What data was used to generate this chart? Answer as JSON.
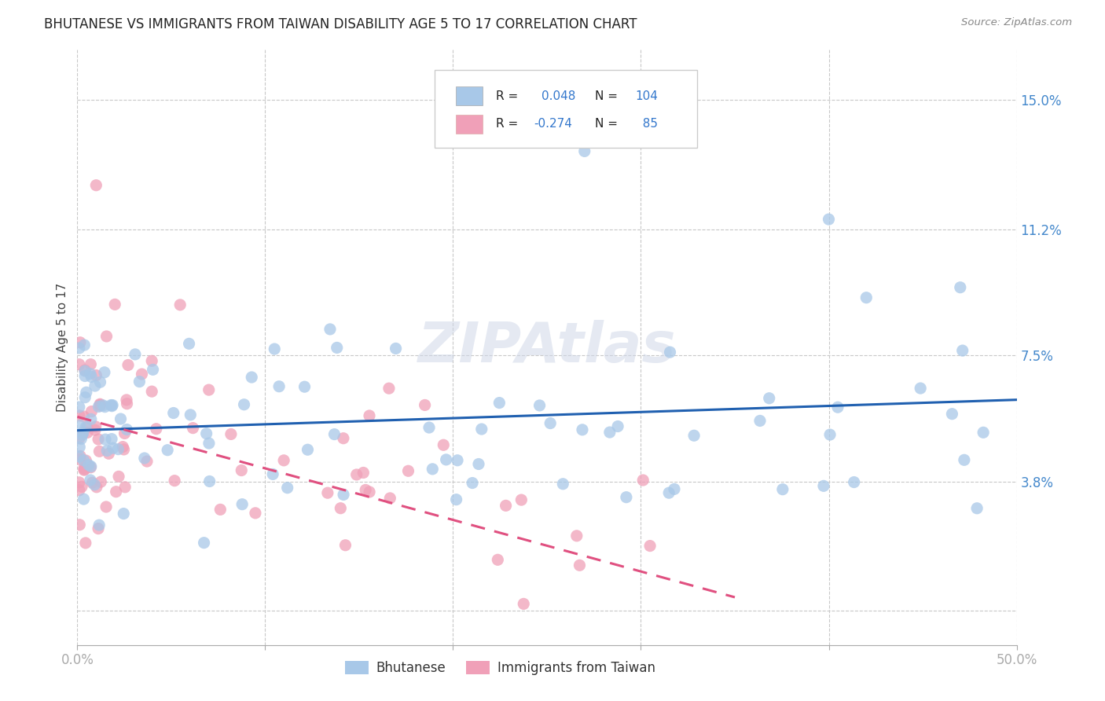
{
  "title": "BHUTANESE VS IMMIGRANTS FROM TAIWAN DISABILITY AGE 5 TO 17 CORRELATION CHART",
  "source": "Source: ZipAtlas.com",
  "ylabel": "Disability Age 5 to 17",
  "xlim": [
    0.0,
    0.5
  ],
  "ylim": [
    -0.01,
    0.165
  ],
  "ytick_positions": [
    0.0,
    0.038,
    0.075,
    0.112,
    0.15
  ],
  "ytick_labels": [
    "",
    "3.8%",
    "7.5%",
    "11.2%",
    "15.0%"
  ],
  "background_color": "#ffffff",
  "grid_color": "#c8c8c8",
  "watermark": "ZIPAtlas",
  "bhutanese_color": "#a8c8e8",
  "taiwan_color": "#f0a0b8",
  "bhutanese_line_color": "#2060b0",
  "taiwan_line_color": "#e05080",
  "legend_bhutanese_label": "Bhutanese",
  "legend_taiwan_label": "Immigrants from Taiwan",
  "r_bhutanese": 0.048,
  "n_bhutanese": 104,
  "r_taiwan": -0.274,
  "n_taiwan": 85,
  "bhutanese_trend_x": [
    0.0,
    0.5
  ],
  "bhutanese_trend_y": [
    0.052,
    0.062
  ],
  "taiwan_trend_x": [
    0.0,
    0.35
  ],
  "taiwan_trend_y": [
    0.058,
    0.005
  ]
}
